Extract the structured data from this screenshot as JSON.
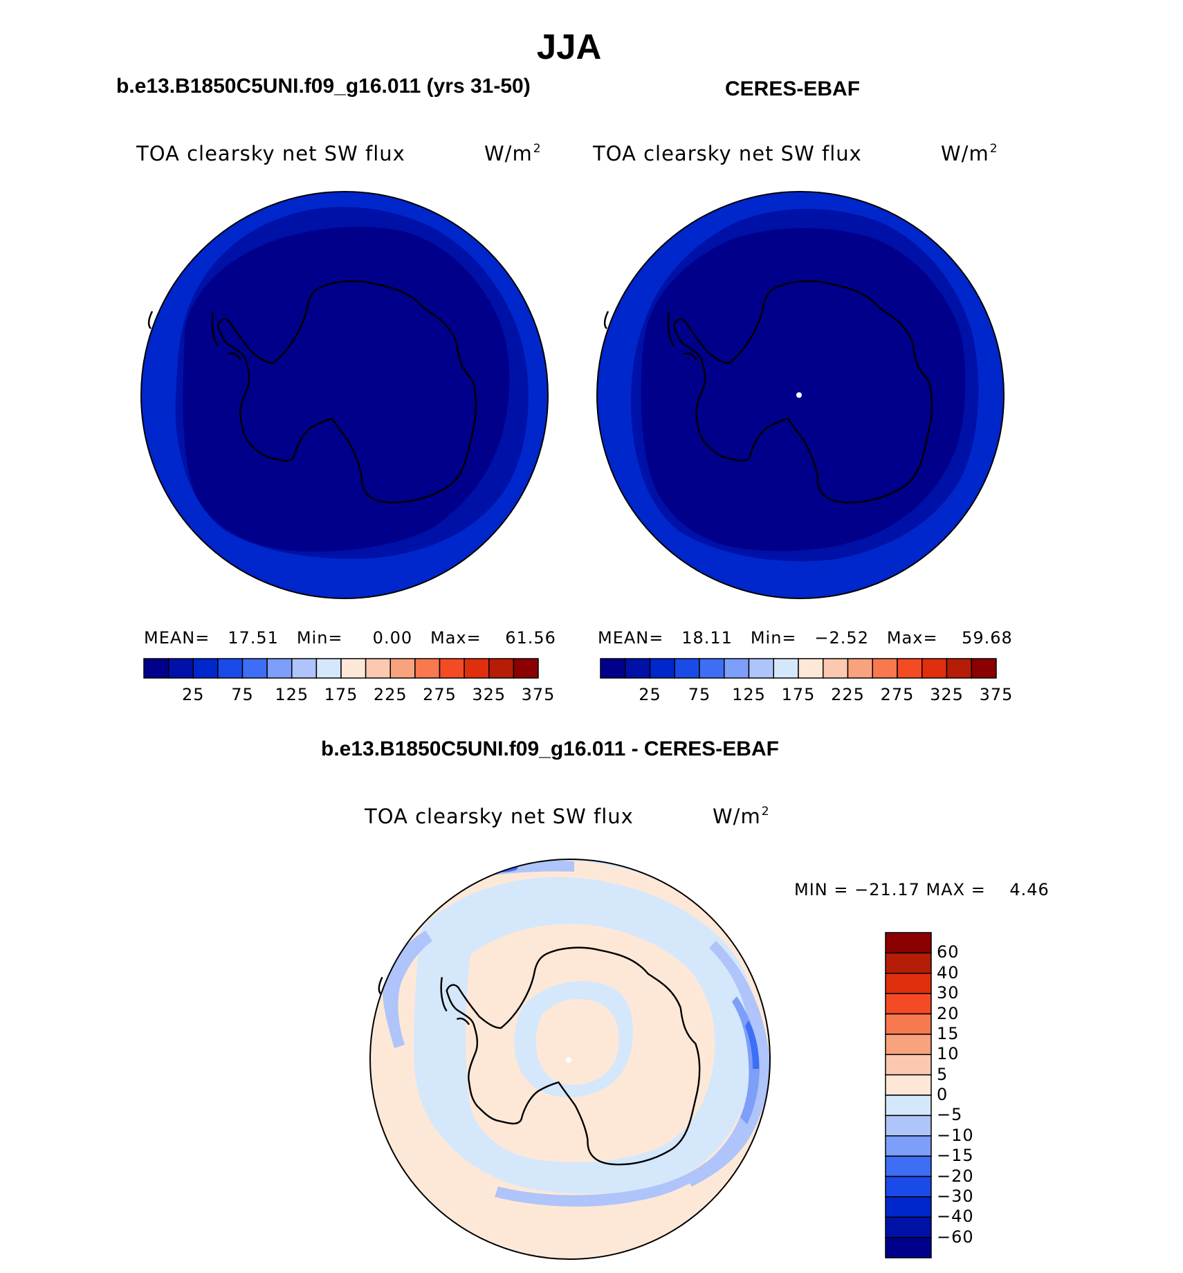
{
  "figure": {
    "title": "JJA",
    "subplot_titles": [
      "b.e13.B1850C5UNI.f09_g16.011 (yrs 31-50)",
      "CERES-EBAF"
    ],
    "diff_title": "b.e13.B1850C5UNI.f09_g16.011 - CERES-EBAF"
  },
  "panels": [
    {
      "variable": "TOA clearsky net SW flux",
      "units": "W/m",
      "units_exponent": "2",
      "stats": "MEAN=   17.51   Min=     0.00   Max=    61.56",
      "colorbar_ticks": [
        "25",
        "75",
        "125",
        "175",
        "225",
        "275",
        "325",
        "375"
      ]
    },
    {
      "variable": "TOA clearsky net SW flux",
      "units": "W/m",
      "units_exponent": "2",
      "stats": "MEAN=   18.11   Min=   −2.52   Max=    59.68",
      "colorbar_ticks": [
        "25",
        "75",
        "125",
        "175",
        "225",
        "275",
        "325",
        "375"
      ]
    },
    {
      "variable": "TOA clearsky net SW flux",
      "units": "W/m",
      "units_exponent": "2",
      "stats": "MIN = −21.17 MAX =    4.46",
      "colorbar_ticks": [
        "60",
        "40",
        "30",
        "20",
        "15",
        "10",
        "5",
        "0",
        "−5",
        "−10",
        "−15",
        "−20",
        "−30",
        "−40",
        "−60"
      ]
    }
  ],
  "colors": {
    "abs_palette": [
      "#00008b",
      "#0011a8",
      "#0027cb",
      "#1a4be8",
      "#3d6ef5",
      "#7d9ef9",
      "#aec4fa",
      "#d5e7fb",
      "#fde8d8",
      "#fbc9b0",
      "#f9a27e",
      "#f8784f",
      "#f44b24",
      "#df2f0c",
      "#b61d06",
      "#8b0000"
    ],
    "diff_palette": [
      "#8b0000",
      "#b61d06",
      "#df2f0c",
      "#f44b24",
      "#f8784f",
      "#f9a27e",
      "#fbc9b0",
      "#fde8d8",
      "#d5e7fb",
      "#aec4fa",
      "#7d9ef9",
      "#3d6ef5",
      "#1a4be8",
      "#0027cb",
      "#0011a8",
      "#00008b"
    ]
  }
}
